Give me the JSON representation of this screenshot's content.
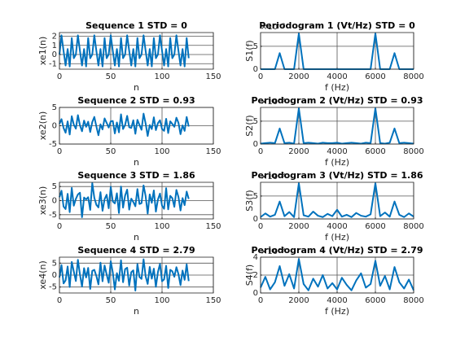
{
  "chart_data": [
    {
      "type": "line",
      "title": "Sequence 1 STD = 0",
      "xlabel": "n",
      "ylabel": "xe1(n)",
      "color": "#0072bd",
      "grid": true,
      "xlim": [
        0,
        150
      ],
      "xticks": [
        0,
        50,
        100,
        150
      ],
      "ylim": [
        -1.6,
        2.4
      ],
      "yticks": [
        -1,
        0,
        1,
        2
      ],
      "x": [
        0,
        2,
        4,
        6,
        8,
        10,
        12,
        14,
        16,
        18,
        20,
        22,
        24,
        26,
        28,
        30,
        32,
        34,
        36,
        38,
        40,
        42,
        44,
        46,
        48,
        50,
        52,
        54,
        56,
        58,
        60,
        62,
        64,
        66,
        68,
        70,
        72,
        74,
        76,
        78,
        80,
        82,
        84,
        86,
        88,
        90,
        92,
        94,
        96,
        98,
        100,
        102,
        104,
        106,
        108,
        110,
        112,
        114,
        116,
        118,
        120,
        122,
        124,
        126
      ],
      "values": [
        0,
        2.1,
        0.4,
        -1.2,
        0.6,
        -1.3,
        1.8,
        -0.4,
        0,
        2.1,
        0.4,
        -1.2,
        0.6,
        -1.3,
        1.8,
        -0.4,
        0,
        2.1,
        0.4,
        -1.2,
        0.6,
        -1.3,
        1.8,
        -0.4,
        0,
        2.1,
        0.4,
        -1.2,
        0.6,
        -1.3,
        1.8,
        -0.4,
        0,
        2.1,
        0.4,
        -1.2,
        0.6,
        -1.3,
        1.8,
        -0.4,
        0,
        2.1,
        0.4,
        -1.2,
        0.6,
        -1.3,
        1.8,
        -0.4,
        0,
        2.1,
        0.4,
        -1.2,
        0.6,
        -1.3,
        1.8,
        -0.4,
        0,
        2.1,
        0.4,
        -1.2,
        0.6,
        -1.3,
        1.8,
        -0.4
      ]
    },
    {
      "type": "line",
      "title": "Periodogram 1 (Vt/Hz) STD = 0",
      "xlabel": "f (Hz)",
      "ylabel": "S1(f)",
      "y_exponent": "×10⁻³",
      "color": "#0072bd",
      "grid": true,
      "xlim": [
        0,
        8000
      ],
      "xticks": [
        0,
        2000,
        4000,
        6000,
        8000
      ],
      "ylim": [
        0,
        8
      ],
      "yticks": [
        0,
        5
      ],
      "x": [
        0,
        250,
        500,
        750,
        1000,
        1250,
        1500,
        1750,
        2000,
        2250,
        2500,
        2750,
        3000,
        3250,
        3500,
        3750,
        4000,
        4250,
        4500,
        4750,
        5000,
        5250,
        5500,
        5750,
        6000,
        6250,
        6500,
        6750,
        7000,
        7250,
        7500,
        7750,
        8000
      ],
      "values": [
        0,
        0,
        0,
        0,
        3.5,
        0,
        0,
        0,
        7.8,
        0,
        0,
        0,
        0,
        0,
        0,
        0,
        0,
        0,
        0,
        0,
        0,
        0,
        0,
        0,
        7.8,
        0,
        0,
        0,
        3.5,
        0,
        0,
        0,
        0
      ]
    },
    {
      "type": "line",
      "title": "Sequence 2 STD = 0.93",
      "xlabel": "n",
      "ylabel": "xe2(n)",
      "color": "#0072bd",
      "grid": true,
      "xlim": [
        0,
        150
      ],
      "xticks": [
        0,
        50,
        100,
        150
      ],
      "ylim": [
        -5,
        5
      ],
      "yticks": [
        -5,
        0,
        5
      ],
      "x": [
        0,
        2,
        4,
        6,
        8,
        10,
        12,
        14,
        16,
        18,
        20,
        22,
        24,
        26,
        28,
        30,
        32,
        34,
        36,
        38,
        40,
        42,
        44,
        46,
        48,
        50,
        52,
        54,
        56,
        58,
        60,
        62,
        64,
        66,
        68,
        70,
        72,
        74,
        76,
        78,
        80,
        82,
        84,
        86,
        88,
        90,
        92,
        94,
        96,
        98,
        100,
        102,
        104,
        106,
        108,
        110,
        112,
        114,
        116,
        118,
        120,
        122,
        124,
        126
      ],
      "values": [
        0.5,
        1.8,
        -0.6,
        -1.9,
        1.2,
        -2.4,
        2.6,
        0.3,
        -0.8,
        2.9,
        0.1,
        -1.5,
        1.4,
        -0.3,
        1.1,
        -1.7,
        1.0,
        2.4,
        -0.2,
        -2.6,
        0.4,
        -1.0,
        2.0,
        0.8,
        -0.5,
        1.2,
        1.3,
        -2.1,
        0.9,
        -1.8,
        3.1,
        -0.9,
        0.2,
        2.7,
        -0.4,
        -0.6,
        1.5,
        -2.2,
        1.6,
        0.2,
        -1.1,
        3.3,
        0.6,
        -2.8,
        0.2,
        -0.9,
        2.3,
        -1.2,
        0.7,
        1.5,
        -0.9,
        -1.4,
        1.9,
        -2.0,
        1.2,
        0.5,
        -0.3,
        2.2,
        0.8,
        -2.3,
        0.1,
        -1.4,
        2.4,
        -0.2
      ]
    },
    {
      "type": "line",
      "title": "Periodogram 2 (Vt/Hz) STD = 0.93",
      "xlabel": "f (Hz)",
      "ylabel": "S2(f)",
      "y_exponent": "×10⁻³",
      "color": "#0072bd",
      "grid": true,
      "xlim": [
        0,
        8000
      ],
      "xticks": [
        0,
        2000,
        4000,
        6000,
        8000
      ],
      "ylim": [
        0,
        8
      ],
      "yticks": [
        0,
        5
      ],
      "x": [
        0,
        250,
        500,
        750,
        1000,
        1250,
        1500,
        1750,
        2000,
        2250,
        2500,
        2750,
        3000,
        3250,
        3500,
        3750,
        4000,
        4250,
        4500,
        4750,
        5000,
        5250,
        5500,
        5750,
        6000,
        6250,
        6500,
        6750,
        7000,
        7250,
        7500,
        7750,
        8000
      ],
      "values": [
        0.1,
        0.2,
        0.3,
        0.2,
        3.4,
        0.2,
        0.3,
        0.1,
        7.8,
        0.2,
        0.3,
        0.2,
        0.1,
        0.3,
        0.2,
        0.2,
        0.3,
        0.1,
        0.2,
        0.3,
        0.2,
        0.1,
        0.3,
        0.2,
        7.8,
        0.2,
        0.1,
        0.3,
        3.4,
        0.2,
        0.3,
        0.2,
        0.1
      ]
    },
    {
      "type": "line",
      "title": "Sequence 3 STD = 1.86",
      "xlabel": "n",
      "ylabel": "xe3(n)",
      "color": "#0072bd",
      "grid": true,
      "xlim": [
        0,
        150
      ],
      "xticks": [
        0,
        50,
        100,
        150
      ],
      "ylim": [
        -6.5,
        6.5
      ],
      "yticks": [
        -5,
        0,
        5
      ],
      "x": [
        0,
        2,
        4,
        6,
        8,
        10,
        12,
        14,
        16,
        18,
        20,
        22,
        24,
        26,
        28,
        30,
        32,
        34,
        36,
        38,
        40,
        42,
        44,
        46,
        48,
        50,
        52,
        54,
        56,
        58,
        60,
        62,
        64,
        66,
        68,
        70,
        72,
        74,
        76,
        78,
        80,
        82,
        84,
        86,
        88,
        90,
        92,
        94,
        96,
        98,
        100,
        102,
        104,
        106,
        108,
        110,
        112,
        114,
        116,
        118,
        120,
        122,
        124,
        126
      ],
      "values": [
        1.2,
        3.5,
        -2.1,
        -3.0,
        2.4,
        -4.1,
        4.5,
        -1.8,
        0.6,
        2.2,
        2.8,
        -5.9,
        1.1,
        0.4,
        1.2,
        -3.3,
        6.2,
        1.0,
        -1.5,
        -2.4,
        3.0,
        -3.6,
        0.5,
        2.1,
        -2.7,
        4.9,
        -0.3,
        -1.0,
        2.6,
        -4.4,
        5.0,
        -2.5,
        1.8,
        3.9,
        -3.2,
        0.7,
        -0.5,
        -2.0,
        4.1,
        -1.2,
        -0.9,
        5.4,
        1.6,
        -4.6,
        2.2,
        -0.8,
        3.6,
        -3.9,
        0.4,
        2.5,
        -1.8,
        -2.9,
        4.4,
        -3.1,
        1.7,
        0.9,
        -2.2,
        3.8,
        1.3,
        -3.5,
        0.9,
        -1.6,
        3.2,
        0.6
      ]
    },
    {
      "type": "line",
      "title": "Periodogram 3 (Vt/Hz) STD = 1.86",
      "xlabel": "f (Hz)",
      "ylabel": "S3(f)",
      "y_exponent": "×10⁻³",
      "color": "#0072bd",
      "grid": true,
      "xlim": [
        0,
        8000
      ],
      "xticks": [
        0,
        2000,
        4000,
        6000,
        8000
      ],
      "ylim": [
        0,
        8
      ],
      "yticks": [
        0,
        5
      ],
      "x": [
        0,
        250,
        500,
        750,
        1000,
        1250,
        1500,
        1750,
        2000,
        2250,
        2500,
        2750,
        3000,
        3250,
        3500,
        3750,
        4000,
        4250,
        4500,
        4750,
        5000,
        5250,
        5500,
        5750,
        6000,
        6250,
        6500,
        6750,
        7000,
        7250,
        7500,
        7750,
        8000
      ],
      "values": [
        0.4,
        1.2,
        0.5,
        0.9,
        3.8,
        0.6,
        1.5,
        0.4,
        7.8,
        0.8,
        0.5,
        1.6,
        0.7,
        0.4,
        1.1,
        0.6,
        2.0,
        0.5,
        0.9,
        0.4,
        1.3,
        0.7,
        0.5,
        1.0,
        7.8,
        0.6,
        1.4,
        0.5,
        3.8,
        0.9,
        0.4,
        1.2,
        0.5
      ]
    },
    {
      "type": "line",
      "title": "Sequence 4 STD = 2.79",
      "xlabel": "n",
      "ylabel": "xe4(n)",
      "color": "#0072bd",
      "grid": true,
      "xlim": [
        0,
        150
      ],
      "xticks": [
        0,
        50,
        100,
        150
      ],
      "ylim": [
        -7.5,
        7.5
      ],
      "yticks": [
        -5,
        0,
        5
      ],
      "x": [
        0,
        2,
        4,
        6,
        8,
        10,
        12,
        14,
        16,
        18,
        20,
        22,
        24,
        26,
        28,
        30,
        32,
        34,
        36,
        38,
        40,
        42,
        44,
        46,
        48,
        50,
        52,
        54,
        56,
        58,
        60,
        62,
        64,
        66,
        68,
        70,
        72,
        74,
        76,
        78,
        80,
        82,
        84,
        86,
        88,
        90,
        92,
        94,
        96,
        98,
        100,
        102,
        104,
        106,
        108,
        110,
        112,
        114,
        116,
        118,
        120,
        122,
        124,
        126
      ],
      "values": [
        -1.0,
        4.2,
        -3.5,
        -2.2,
        3.6,
        -5.0,
        5.5,
        1.5,
        -2.5,
        6.4,
        0.2,
        -4.8,
        2.9,
        -1.0,
        3.0,
        -5.8,
        1.8,
        2.2,
        -0.4,
        -3.9,
        5.2,
        -2.6,
        4.0,
        0.3,
        -3.2,
        5.8,
        1.1,
        -6.0,
        0.8,
        -2.4,
        6.2,
        -3.0,
        2.5,
        3.1,
        -4.4,
        1.2,
        2.0,
        -6.5,
        4.6,
        -0.8,
        -1.6,
        6.6,
        -0.5,
        -3.7,
        3.4,
        -1.5,
        2.7,
        -4.9,
        1.3,
        4.7,
        -2.6,
        -1.8,
        3.9,
        -5.4,
        2.2,
        1.6,
        -0.7,
        3.3,
        0.4,
        -4.2,
        1.9,
        -2.0,
        4.5,
        -2.5
      ]
    },
    {
      "type": "line",
      "title": "Periodogram 4 (Vt/Hz) STD = 2.79",
      "xlabel": "f (Hz)",
      "ylabel": "S4(f)",
      "y_exponent": "×10⁻³",
      "color": "#0072bd",
      "grid": true,
      "xlim": [
        0,
        8000
      ],
      "xticks": [
        0,
        2000,
        4000,
        6000,
        8000
      ],
      "ylim": [
        0,
        4
      ],
      "yticks": [
        0,
        2,
        4
      ],
      "x": [
        0,
        250,
        500,
        750,
        1000,
        1250,
        1500,
        1750,
        2000,
        2250,
        2500,
        2750,
        3000,
        3250,
        3500,
        3750,
        4000,
        4250,
        4500,
        4750,
        5000,
        5250,
        5500,
        5750,
        6000,
        6250,
        6500,
        6750,
        7000,
        7250,
        7500,
        7750,
        8000
      ],
      "values": [
        0.6,
        1.8,
        0.4,
        1.2,
        3.0,
        0.8,
        2.1,
        0.5,
        3.8,
        1.0,
        0.3,
        1.6,
        0.7,
        2.0,
        0.5,
        1.1,
        0.4,
        1.7,
        0.9,
        0.3,
        1.4,
        2.2,
        0.6,
        1.0,
        3.6,
        0.8,
        1.9,
        0.4,
        2.9,
        1.2,
        0.5,
        1.5,
        0.3
      ]
    }
  ]
}
